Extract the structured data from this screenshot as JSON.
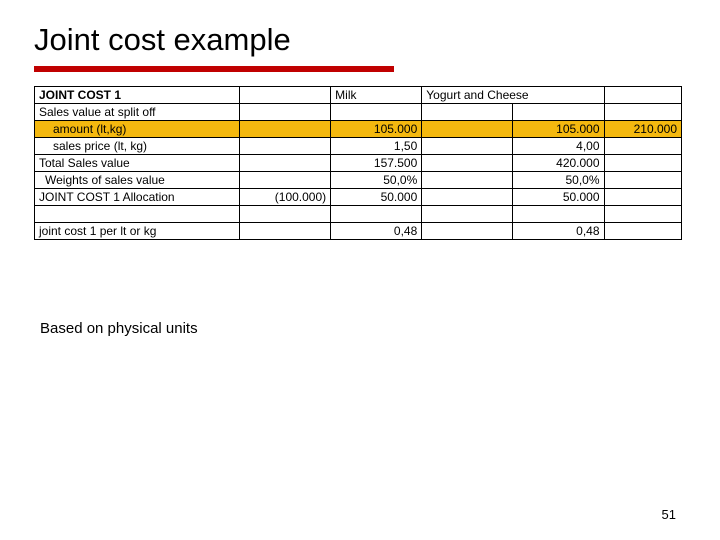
{
  "title": "Joint cost example",
  "colors": {
    "underline": "#c00000",
    "highlight": "#f4b80f",
    "border": "#000000",
    "text": "#000000",
    "background": "#ffffff"
  },
  "table": {
    "header": {
      "label": "JOINT COST 1",
      "col_c": "Milk",
      "col_d": "Yogurt and Cheese"
    },
    "rows": [
      {
        "a": "Sales value at split off",
        "b": "",
        "c": "",
        "d": "",
        "e": "",
        "f": ""
      },
      {
        "a": "amount (lt,kg)",
        "hl": true,
        "b": "",
        "c": "105.000",
        "d": "",
        "e": "105.000",
        "f": "210.000"
      },
      {
        "a": "sales price (lt, kg)",
        "b": "",
        "c": "1,50",
        "d": "",
        "e": "4,00",
        "f": ""
      },
      {
        "a": "Total Sales value",
        "b": "",
        "c": "157.500",
        "d": "",
        "e": "420.000",
        "f": ""
      },
      {
        "a": "Weights of sales value",
        "b": "",
        "c": "50,0%",
        "d": "",
        "e": "50,0%",
        "f": ""
      },
      {
        "a": "JOINT COST 1 Allocation",
        "b": "(100.000)",
        "c": "50.000",
        "d": "",
        "e": "50.000",
        "f": ""
      },
      {
        "a": "",
        "b": "",
        "c": "",
        "d": "",
        "e": "",
        "f": ""
      },
      {
        "a": "joint cost 1 per lt or kg",
        "b": "",
        "c": "0,48",
        "d": "",
        "e": "0,48",
        "f": ""
      }
    ]
  },
  "caption": "Based on physical units",
  "page_number": "51"
}
